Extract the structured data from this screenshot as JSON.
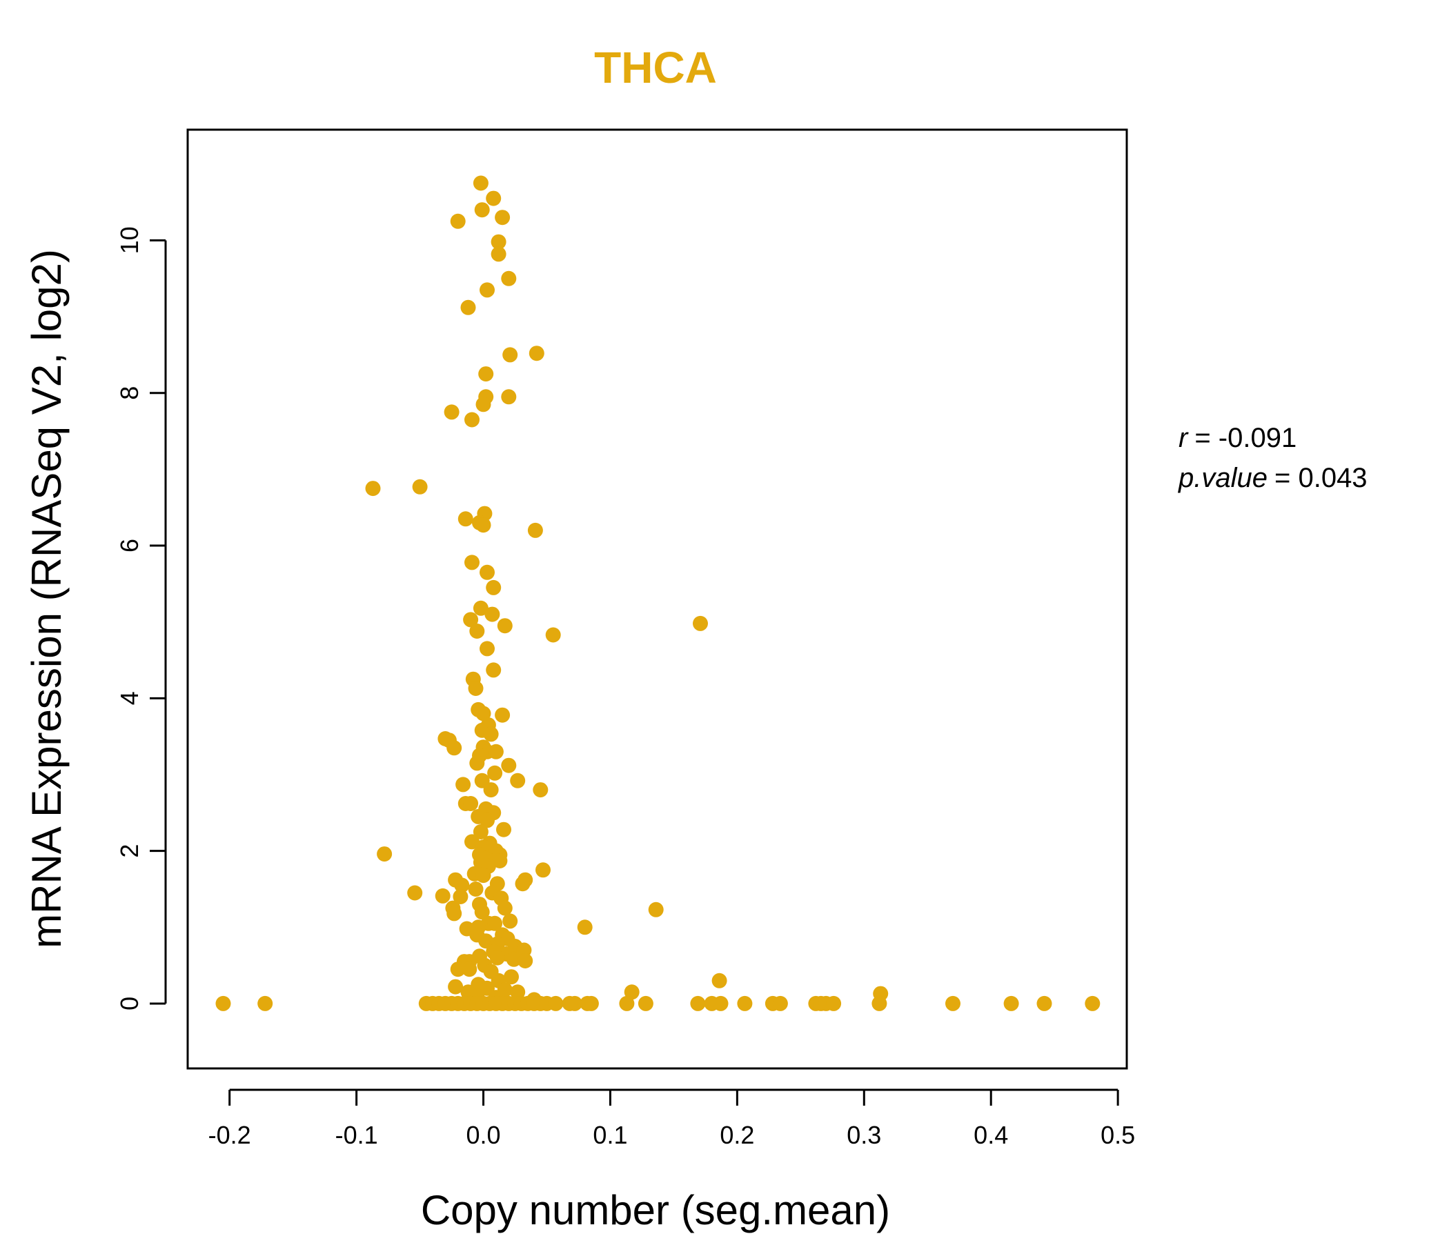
{
  "colors": {
    "accent": "#E3A90D",
    "axis": "#000000",
    "background": "#FFFFFF"
  },
  "chart_data": {
    "type": "scatter",
    "title": "THCA",
    "xlabel": "Copy number (seg.mean)",
    "ylabel": "mRNA Expression (RNASeq V2, log2)",
    "xlim": [
      -0.233,
      0.507
    ],
    "ylim": [
      -0.85,
      11.45
    ],
    "x_ticks": [
      -0.2,
      -0.1,
      0.0,
      0.1,
      0.2,
      0.3,
      0.4,
      0.5
    ],
    "x_tick_labels": [
      "-0.2",
      "-0.1",
      "0.0",
      "0.1",
      "0.2",
      "0.3",
      "0.4",
      "0.5"
    ],
    "y_ticks": [
      0,
      2,
      4,
      6,
      8,
      10
    ],
    "y_tick_labels": [
      "0",
      "2",
      "4",
      "6",
      "8",
      "10"
    ],
    "stats": {
      "r_label": "r",
      "r_value": "= -0.091",
      "p_label": "p.value",
      "p_value": "= 0.043"
    },
    "points": [
      [
        -0.002,
        10.75
      ],
      [
        0.008,
        10.55
      ],
      [
        -0.001,
        10.4
      ],
      [
        0.015,
        10.3
      ],
      [
        -0.02,
        10.25
      ],
      [
        0.012,
        9.98
      ],
      [
        0.012,
        9.82
      ],
      [
        0.02,
        9.5
      ],
      [
        0.003,
        9.35
      ],
      [
        -0.012,
        9.12
      ],
      [
        0.042,
        8.52
      ],
      [
        0.021,
        8.5
      ],
      [
        0.002,
        8.25
      ],
      [
        0.002,
        7.95
      ],
      [
        0.02,
        7.95
      ],
      [
        0.0,
        7.85
      ],
      [
        -0.025,
        7.75
      ],
      [
        -0.009,
        7.65
      ],
      [
        -0.087,
        6.75
      ],
      [
        -0.05,
        6.77
      ],
      [
        0.001,
        6.42
      ],
      [
        -0.014,
        6.35
      ],
      [
        -0.003,
        6.3
      ],
      [
        0.0,
        6.27
      ],
      [
        0.041,
        6.2
      ],
      [
        -0.009,
        5.78
      ],
      [
        0.003,
        5.65
      ],
      [
        0.008,
        5.45
      ],
      [
        -0.002,
        5.18
      ],
      [
        0.007,
        5.1
      ],
      [
        -0.01,
        5.03
      ],
      [
        0.017,
        4.95
      ],
      [
        -0.005,
        4.88
      ],
      [
        0.055,
        4.83
      ],
      [
        0.171,
        4.98
      ],
      [
        0.003,
        4.65
      ],
      [
        0.008,
        4.37
      ],
      [
        -0.008,
        4.25
      ],
      [
        -0.006,
        4.13
      ],
      [
        -0.004,
        3.85
      ],
      [
        0.0,
        3.8
      ],
      [
        0.015,
        3.78
      ],
      [
        0.004,
        3.65
      ],
      [
        -0.001,
        3.58
      ],
      [
        0.006,
        3.53
      ],
      [
        -0.03,
        3.47
      ],
      [
        -0.027,
        3.45
      ],
      [
        -0.023,
        3.35
      ],
      [
        0.0,
        3.36
      ],
      [
        0.003,
        3.3
      ],
      [
        0.01,
        3.3
      ],
      [
        -0.003,
        3.25
      ],
      [
        -0.005,
        3.15
      ],
      [
        0.02,
        3.12
      ],
      [
        0.009,
        3.02
      ],
      [
        -0.001,
        2.92
      ],
      [
        0.027,
        2.92
      ],
      [
        -0.016,
        2.87
      ],
      [
        0.006,
        2.8
      ],
      [
        0.045,
        2.8
      ],
      [
        -0.014,
        2.62
      ],
      [
        -0.01,
        2.62
      ],
      [
        0.002,
        2.55
      ],
      [
        0.008,
        2.5
      ],
      [
        -0.004,
        2.45
      ],
      [
        0.003,
        2.4
      ],
      [
        0.016,
        2.28
      ],
      [
        -0.002,
        2.25
      ],
      [
        -0.009,
        2.12
      ],
      [
        0.005,
        2.1
      ],
      [
        0.0,
        2.05
      ],
      [
        0.01,
        2.0
      ],
      [
        -0.003,
        1.95
      ],
      [
        0.013,
        1.95
      ],
      [
        0.002,
        1.9
      ],
      [
        -0.078,
        1.96
      ],
      [
        0.013,
        1.87
      ],
      [
        -0.002,
        1.85
      ],
      [
        0.004,
        1.8
      ],
      [
        0.047,
        1.75
      ],
      [
        -0.007,
        1.7
      ],
      [
        0.0,
        1.68
      ],
      [
        0.033,
        1.62
      ],
      [
        -0.022,
        1.62
      ],
      [
        0.031,
        1.57
      ],
      [
        0.011,
        1.57
      ],
      [
        -0.017,
        1.55
      ],
      [
        -0.006,
        1.5
      ],
      [
        0.007,
        1.45
      ],
      [
        -0.054,
        1.45
      ],
      [
        -0.032,
        1.41
      ],
      [
        -0.018,
        1.4
      ],
      [
        0.014,
        1.38
      ],
      [
        -0.003,
        1.3
      ],
      [
        0.017,
        1.25
      ],
      [
        -0.024,
        1.25
      ],
      [
        -0.001,
        1.2
      ],
      [
        -0.023,
        1.18
      ],
      [
        0.136,
        1.23
      ],
      [
        0.021,
        1.08
      ],
      [
        0.004,
        1.05
      ],
      [
        0.009,
        1.05
      ],
      [
        -0.004,
        1.0
      ],
      [
        -0.013,
        0.98
      ],
      [
        0.08,
        1.0
      ],
      [
        0.015,
        0.9
      ],
      [
        -0.005,
        0.9
      ],
      [
        0.019,
        0.85
      ],
      [
        0.002,
        0.82
      ],
      [
        0.011,
        0.78
      ],
      [
        0.025,
        0.75
      ],
      [
        0.032,
        0.7
      ],
      [
        0.008,
        0.68
      ],
      [
        0.018,
        0.65
      ],
      [
        -0.003,
        0.62
      ],
      [
        0.011,
        0.6
      ],
      [
        0.024,
        0.58
      ],
      [
        0.033,
        0.56
      ],
      [
        -0.011,
        0.55
      ],
      [
        -0.015,
        0.55
      ],
      [
        0.001,
        0.5
      ],
      [
        -0.02,
        0.45
      ],
      [
        -0.011,
        0.45
      ],
      [
        0.006,
        0.42
      ],
      [
        0.022,
        0.35
      ],
      [
        0.012,
        0.3
      ],
      [
        -0.004,
        0.25
      ],
      [
        0.186,
        0.3
      ],
      [
        -0.022,
        0.22
      ],
      [
        0.003,
        0.2
      ],
      [
        0.017,
        0.18
      ],
      [
        0.027,
        0.15
      ],
      [
        -0.012,
        0.15
      ],
      [
        0.117,
        0.15
      ],
      [
        0.313,
        0.13
      ],
      [
        -0.005,
        0.1
      ],
      [
        0.01,
        0.08
      ],
      [
        0.04,
        0.05
      ],
      [
        -0.205,
        0.0
      ],
      [
        -0.172,
        0.0
      ],
      [
        -0.045,
        0.0
      ],
      [
        -0.04,
        0.0
      ],
      [
        -0.035,
        0.0
      ],
      [
        -0.03,
        0.0
      ],
      [
        -0.025,
        0.0
      ],
      [
        -0.02,
        0.0
      ],
      [
        -0.015,
        0.0
      ],
      [
        -0.01,
        0.0
      ],
      [
        -0.005,
        0.0
      ],
      [
        0.0,
        0.0
      ],
      [
        0.005,
        0.0
      ],
      [
        0.01,
        0.0
      ],
      [
        0.015,
        0.0
      ],
      [
        0.02,
        0.0
      ],
      [
        0.025,
        0.0
      ],
      [
        0.03,
        0.0
      ],
      [
        0.035,
        0.0
      ],
      [
        0.04,
        0.0
      ],
      [
        0.045,
        0.0
      ],
      [
        0.05,
        0.0
      ],
      [
        0.057,
        0.0
      ],
      [
        0.068,
        0.0
      ],
      [
        0.072,
        0.0
      ],
      [
        0.082,
        0.0
      ],
      [
        0.085,
        0.0
      ],
      [
        0.113,
        0.0
      ],
      [
        0.128,
        0.0
      ],
      [
        0.169,
        0.0
      ],
      [
        0.18,
        0.0
      ],
      [
        0.187,
        0.0
      ],
      [
        0.206,
        0.0
      ],
      [
        0.228,
        0.0
      ],
      [
        0.234,
        0.0
      ],
      [
        0.262,
        0.0
      ],
      [
        0.266,
        0.0
      ],
      [
        0.27,
        0.0
      ],
      [
        0.276,
        0.0
      ],
      [
        0.312,
        0.0
      ],
      [
        0.37,
        0.0
      ],
      [
        0.416,
        0.0
      ],
      [
        0.442,
        0.0
      ],
      [
        0.48,
        0.0
      ]
    ]
  }
}
